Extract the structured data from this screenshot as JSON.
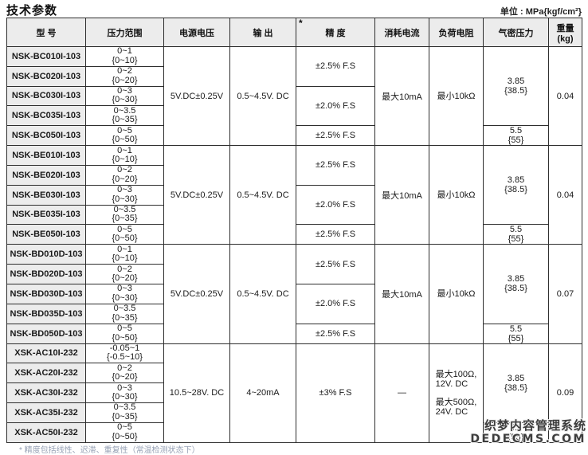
{
  "page": {
    "title": "技术参数",
    "unit_note": "单位 : MPa{kgf/cm²}"
  },
  "table": {
    "columns": [
      {
        "label": "型  号"
      },
      {
        "label": "压力范围"
      },
      {
        "label": "电源电压"
      },
      {
        "label": "输  出"
      },
      {
        "label": "精  度",
        "mark": "*"
      },
      {
        "label": "消耗电流"
      },
      {
        "label": "负荷电阻"
      },
      {
        "label": "气密压力"
      },
      {
        "label": "重量",
        "sub": "(kg)"
      }
    ],
    "blocks": [
      {
        "rows": [
          {
            "model": "NSK-BC010I-103",
            "range": "0~1",
            "range_alt": "{0~10}"
          },
          {
            "model": "NSK-BC020I-103",
            "range": "0~2",
            "range_alt": "{0~20}"
          },
          {
            "model": "NSK-BC030I-103",
            "range": "0~3",
            "range_alt": "{0~30}"
          },
          {
            "model": "NSK-BC035I-103",
            "range": "0~3.5",
            "range_alt": "{0~35}"
          },
          {
            "model": "NSK-BC050I-103",
            "range": "0~5",
            "range_alt": "{0~50}"
          }
        ],
        "supply": "5V.DC±0.25V",
        "output": "0.5~4.5V. DC",
        "accuracy": [
          {
            "rows": 2,
            "text": "±2.5% F.S"
          },
          {
            "rows": 2,
            "text": "±2.0% F.S"
          },
          {
            "rows": 1,
            "text": "±2.5% F.S"
          }
        ],
        "current": "最大10mA",
        "load_groups": [
          [
            "最小10kΩ"
          ]
        ],
        "airtight": [
          {
            "rows": 4,
            "value": "3.85",
            "alt": "{38.5}"
          },
          {
            "rows": 1,
            "value": "5.5",
            "alt": "{55}"
          }
        ],
        "weight": "0.04"
      },
      {
        "rows": [
          {
            "model": "NSK-BE010I-103",
            "range": "0~1",
            "range_alt": "{0~10}"
          },
          {
            "model": "NSK-BE020I-103",
            "range": "0~2",
            "range_alt": "{0~20}"
          },
          {
            "model": "NSK-BE030I-103",
            "range": "0~3",
            "range_alt": "{0~30}"
          },
          {
            "model": "NSK-BE035I-103",
            "range": "0~3.5",
            "range_alt": "{0~35}"
          },
          {
            "model": "NSK-BE050I-103",
            "range": "0~5",
            "range_alt": "{0~50}"
          }
        ],
        "supply": "5V.DC±0.25V",
        "output": "0.5~4.5V. DC",
        "accuracy": [
          {
            "rows": 2,
            "text": "±2.5% F.S"
          },
          {
            "rows": 2,
            "text": "±2.0% F.S"
          },
          {
            "rows": 1,
            "text": "±2.5% F.S"
          }
        ],
        "current": "最大10mA",
        "load_groups": [
          [
            "最小10kΩ"
          ]
        ],
        "airtight": [
          {
            "rows": 4,
            "value": "3.85",
            "alt": "{38.5}"
          },
          {
            "rows": 1,
            "value": "5.5",
            "alt": "{55}"
          }
        ],
        "weight": "0.04"
      },
      {
        "rows": [
          {
            "model": "NSK-BD010D-103",
            "range": "0~1",
            "range_alt": "{0~10}"
          },
          {
            "model": "NSK-BD020D-103",
            "range": "0~2",
            "range_alt": "{0~20}"
          },
          {
            "model": "NSK-BD030D-103",
            "range": "0~3",
            "range_alt": "{0~30}"
          },
          {
            "model": "NSK-BD035D-103",
            "range": "0~3.5",
            "range_alt": "{0~35}"
          },
          {
            "model": "NSK-BD050D-103",
            "range": "0~5",
            "range_alt": "{0~50}"
          }
        ],
        "supply": "5V.DC±0.25V",
        "output": "0.5~4.5V. DC",
        "accuracy": [
          {
            "rows": 2,
            "text": "±2.5% F.S"
          },
          {
            "rows": 2,
            "text": "±2.0% F.S"
          },
          {
            "rows": 1,
            "text": "±2.5% F.S"
          }
        ],
        "current": "最大10mA",
        "load_groups": [
          [
            "最小10kΩ"
          ]
        ],
        "airtight": [
          {
            "rows": 4,
            "value": "3.85",
            "alt": "{38.5}"
          },
          {
            "rows": 1,
            "value": "5.5",
            "alt": "{55}"
          }
        ],
        "weight": "0.07"
      },
      {
        "rows": [
          {
            "model": "XSK-AC10I-232",
            "range": "-0.05~1",
            "range_alt": "{-0.5~10}"
          },
          {
            "model": "XSK-AC20I-232",
            "range": "0~2",
            "range_alt": "{0~20}"
          },
          {
            "model": "XSK-AC30I-232",
            "range": "0~3",
            "range_alt": "{0~30}"
          },
          {
            "model": "XSK-AC35I-232",
            "range": "0~3.5",
            "range_alt": "{0~35}"
          },
          {
            "model": "XSK-AC50I-232",
            "range": "0~5",
            "range_alt": "{0~50}"
          }
        ],
        "supply": "10.5~28V. DC",
        "output": "4~20mA",
        "accuracy": [
          {
            "rows": 5,
            "text": "±3% F.S"
          }
        ],
        "current": "—",
        "load_groups": [
          [
            "最大100Ω,",
            "12V. DC"
          ],
          [
            "最大500Ω,",
            "24V. DC"
          ]
        ],
        "airtight": [
          {
            "rows": 4,
            "value": "3.85",
            "alt": "{38.5}"
          },
          {
            "rows": 1,
            "value": "5.5",
            "alt": "{55}"
          }
        ],
        "weight": "0.09"
      }
    ]
  },
  "watermark": {
    "line1": "织梦内容管理系统",
    "line2": "DEDECMS.COM"
  },
  "footnote": "* 精度包括线性、迟滞、重复性（常温检测状态下）",
  "colors": {
    "header_bg": "#ececec",
    "border": "#2e2e2e",
    "watermark_text": "#3d3d3d"
  }
}
